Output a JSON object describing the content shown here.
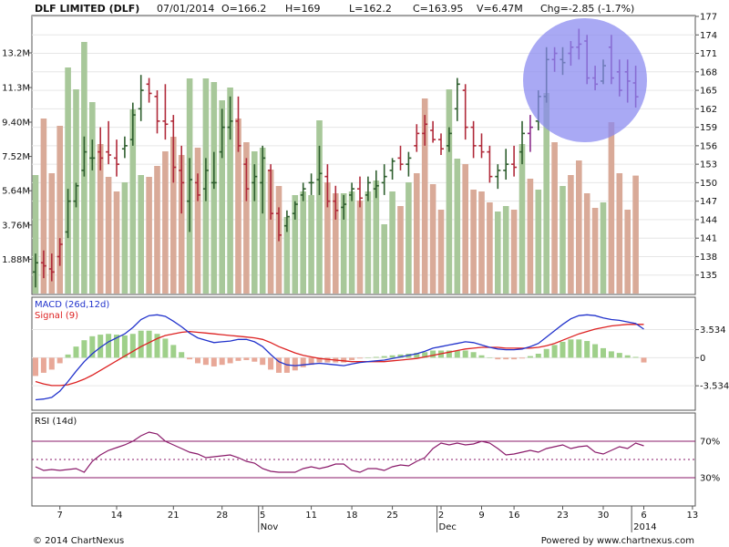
{
  "header": {
    "name": "DLF LIMITED (DLF)",
    "date": "07/01/2014",
    "open": "O=166.2",
    "high": "H=169",
    "low": "L=162.2",
    "close": "C=163.95",
    "volume": "V=6.47M",
    "change": "Chg=-2.85 (-1.7%)"
  },
  "footer": {
    "copyright": "© 2014 ChartNexus",
    "powered": "Powered by www.chartnexus.com"
  },
  "colors": {
    "up": "#2f5f2f",
    "down": "#b02a3a",
    "down_late": "#8a2a8a",
    "vol_up": "#a8c89a",
    "vol_down": "#d9aa98",
    "macd_line": "#2233cc",
    "signal_line": "#dd2222",
    "hist_up": "#9fd08a",
    "hist_down": "#e8a898",
    "rsi_line": "#8a1a6a",
    "highlight_circle": "#8888f0"
  },
  "chart_data": [
    {
      "type": "ohlc",
      "name": "price",
      "y_axis_labels": [
        "177",
        "174",
        "171",
        "168",
        "165",
        "162",
        "159",
        "156",
        "153",
        "150",
        "147",
        "144",
        "141",
        "138",
        "135"
      ],
      "ylim": [
        132,
        177
      ],
      "volume_axis_labels": [
        "13.2M",
        "11.3M",
        "9.40M",
        "7.52M",
        "5.64M",
        "3.76M",
        "1.88M"
      ],
      "volume_ylim": [
        0,
        15.2
      ],
      "x_tick_labels": [
        "7",
        "14",
        "21",
        "28",
        "5",
        "11",
        "18",
        "25",
        "2",
        "9",
        "16",
        "23",
        "30",
        "6",
        "13"
      ],
      "month_labels": [
        "Nov",
        "Dec",
        "2014"
      ],
      "bars": [
        {
          "o": 135.5,
          "h": 138.5,
          "l": 133.0,
          "c": 137.0,
          "v": 6.5,
          "up": true
        },
        {
          "o": 137.0,
          "h": 139.0,
          "l": 134.5,
          "c": 136.5,
          "v": 9.6,
          "up": false
        },
        {
          "o": 136.0,
          "h": 138.5,
          "l": 134.0,
          "c": 135.5,
          "v": 6.6,
          "up": false
        },
        {
          "o": 138.0,
          "h": 141.0,
          "l": 136.5,
          "c": 140.0,
          "v": 9.2,
          "up": false
        },
        {
          "o": 142.0,
          "h": 149.0,
          "l": 141.0,
          "c": 147.0,
          "v": 12.4,
          "up": true
        },
        {
          "o": 147.0,
          "h": 150.0,
          "l": 146.0,
          "c": 149.5,
          "v": 11.2,
          "up": true
        },
        {
          "o": 152.0,
          "h": 157.5,
          "l": 151.0,
          "c": 155.0,
          "v": 13.8,
          "up": true
        },
        {
          "o": 154.0,
          "h": 157.0,
          "l": 152.0,
          "c": 154.0,
          "v": 10.5,
          "up": true
        },
        {
          "o": 155.0,
          "h": 159.0,
          "l": 152.0,
          "c": 154.0,
          "v": 8.2,
          "up": false
        },
        {
          "o": 155.0,
          "h": 160.0,
          "l": 153.0,
          "c": 154.5,
          "v": 6.4,
          "up": false
        },
        {
          "o": 154.0,
          "h": 157.0,
          "l": 151.0,
          "c": 153.0,
          "v": 5.6,
          "up": false
        },
        {
          "o": 155.5,
          "h": 157.5,
          "l": 154.0,
          "c": 156.0,
          "v": 6.1,
          "up": true
        },
        {
          "o": 157.0,
          "h": 163.0,
          "l": 156.0,
          "c": 161.0,
          "v": 10.1,
          "up": true
        },
        {
          "o": 162.0,
          "h": 167.5,
          "l": 160.0,
          "c": 165.0,
          "v": 6.5,
          "up": true
        },
        {
          "o": 166.0,
          "h": 167.0,
          "l": 163.0,
          "c": 164.5,
          "v": 6.4,
          "up": false
        },
        {
          "o": 164.0,
          "h": 165.0,
          "l": 158.0,
          "c": 160.0,
          "v": 7.0,
          "up": false
        },
        {
          "o": 160.0,
          "h": 166.0,
          "l": 157.0,
          "c": 159.5,
          "v": 7.8,
          "up": false
        },
        {
          "o": 160.0,
          "h": 161.0,
          "l": 150.0,
          "c": 152.5,
          "v": 8.6,
          "up": false
        },
        {
          "o": 152.0,
          "h": 156.0,
          "l": 145.0,
          "c": 150.0,
          "v": 7.6,
          "up": false
        },
        {
          "o": 147.0,
          "h": 154.0,
          "l": 142.0,
          "c": 150.5,
          "v": 11.8,
          "up": true
        },
        {
          "o": 150.0,
          "h": 151.5,
          "l": 147.0,
          "c": 148.0,
          "v": 8.0,
          "up": false
        },
        {
          "o": 149.0,
          "h": 154.0,
          "l": 147.0,
          "c": 152.0,
          "v": 11.8,
          "up": true
        },
        {
          "o": 150.0,
          "h": 155.0,
          "l": 149.0,
          "c": 150.0,
          "v": 11.6,
          "up": true
        },
        {
          "o": 155.0,
          "h": 162.0,
          "l": 154.0,
          "c": 159.0,
          "v": 10.6,
          "up": true
        },
        {
          "o": 159.0,
          "h": 164.0,
          "l": 157.0,
          "c": 160.0,
          "v": 11.3,
          "up": true
        },
        {
          "o": 160.0,
          "h": 164.0,
          "l": 155.0,
          "c": 156.0,
          "v": 9.6,
          "up": false
        },
        {
          "o": 153.0,
          "h": 154.0,
          "l": 147.0,
          "c": 149.0,
          "v": 8.3,
          "up": false
        },
        {
          "o": 150.0,
          "h": 153.0,
          "l": 147.0,
          "c": 151.0,
          "v": 7.8,
          "up": true
        },
        {
          "o": 150.0,
          "h": 156.0,
          "l": 145.0,
          "c": 154.0,
          "v": 8.0,
          "up": true
        },
        {
          "o": 152.0,
          "h": 153.0,
          "l": 144.0,
          "c": 145.0,
          "v": 6.8,
          "up": false
        },
        {
          "o": 145.0,
          "h": 146.0,
          "l": 140.5,
          "c": 141.5,
          "v": 5.9,
          "up": false
        },
        {
          "o": 143.0,
          "h": 145.5,
          "l": 142.0,
          "c": 144.5,
          "v": 4.2,
          "up": true
        },
        {
          "o": 145.0,
          "h": 147.0,
          "l": 144.0,
          "c": 146.5,
          "v": 5.4,
          "up": true
        },
        {
          "o": 148.0,
          "h": 150.0,
          "l": 147.0,
          "c": 149.0,
          "v": 5.6,
          "up": true
        },
        {
          "o": 150.0,
          "h": 151.5,
          "l": 148.0,
          "c": 150.0,
          "v": 5.4,
          "up": true
        },
        {
          "o": 150.5,
          "h": 156.0,
          "l": 148.0,
          "c": 151.5,
          "v": 9.5,
          "up": true
        },
        {
          "o": 151.0,
          "h": 153.0,
          "l": 146.0,
          "c": 147.0,
          "v": 6.1,
          "up": false
        },
        {
          "o": 147.0,
          "h": 149.5,
          "l": 144.0,
          "c": 145.5,
          "v": 5.5,
          "up": false
        },
        {
          "o": 146.0,
          "h": 148.0,
          "l": 144.0,
          "c": 146.5,
          "v": 5.5,
          "up": true
        },
        {
          "o": 148.0,
          "h": 150.0,
          "l": 147.0,
          "c": 149.0,
          "v": 5.6,
          "up": true
        },
        {
          "o": 149.0,
          "h": 151.0,
          "l": 146.0,
          "c": 147.5,
          "v": 5.1,
          "up": false
        },
        {
          "o": 148.0,
          "h": 151.0,
          "l": 147.0,
          "c": 150.0,
          "v": 5.6,
          "up": true
        },
        {
          "o": 149.0,
          "h": 152.0,
          "l": 147.5,
          "c": 149.5,
          "v": 6.2,
          "up": true
        },
        {
          "o": 150.0,
          "h": 153.0,
          "l": 148.0,
          "c": 151.0,
          "v": 3.8,
          "up": true
        },
        {
          "o": 152.0,
          "h": 154.0,
          "l": 150.5,
          "c": 153.5,
          "v": 5.6,
          "up": true
        },
        {
          "o": 154.0,
          "h": 156.0,
          "l": 152.0,
          "c": 153.0,
          "v": 4.8,
          "up": false
        },
        {
          "o": 153.0,
          "h": 155.0,
          "l": 151.0,
          "c": 154.0,
          "v": 6.1,
          "up": true
        },
        {
          "o": 156.0,
          "h": 159.5,
          "l": 155.0,
          "c": 158.0,
          "v": 6.6,
          "up": false
        },
        {
          "o": 158.0,
          "h": 161.0,
          "l": 156.0,
          "c": 159.5,
          "v": 10.7,
          "up": false
        },
        {
          "o": 158.5,
          "h": 160.0,
          "l": 156.5,
          "c": 157.0,
          "v": 6.0,
          "up": false
        },
        {
          "o": 157.0,
          "h": 158.0,
          "l": 154.5,
          "c": 155.5,
          "v": 4.6,
          "up": false
        },
        {
          "o": 156.0,
          "h": 159.0,
          "l": 155.0,
          "c": 158.0,
          "v": 11.2,
          "up": true
        },
        {
          "o": 162.0,
          "h": 167.0,
          "l": 160.0,
          "c": 166.0,
          "v": 7.4,
          "up": true
        },
        {
          "o": 165.0,
          "h": 166.0,
          "l": 157.0,
          "c": 159.0,
          "v": 7.1,
          "up": false
        },
        {
          "o": 159.0,
          "h": 160.0,
          "l": 154.0,
          "c": 156.0,
          "v": 5.7,
          "up": false
        },
        {
          "o": 156.0,
          "h": 158.0,
          "l": 154.0,
          "c": 155.0,
          "v": 5.6,
          "up": false
        },
        {
          "o": 155.0,
          "h": 156.0,
          "l": 150.0,
          "c": 151.0,
          "v": 5.0,
          "up": false
        },
        {
          "o": 151.0,
          "h": 153.0,
          "l": 149.0,
          "c": 152.0,
          "v": 4.5,
          "up": true
        },
        {
          "o": 152.0,
          "h": 155.5,
          "l": 150.5,
          "c": 153.0,
          "v": 4.8,
          "up": true
        },
        {
          "o": 153.0,
          "h": 156.0,
          "l": 151.0,
          "c": 152.5,
          "v": 4.6,
          "up": false
        },
        {
          "o": 155.0,
          "h": 160.0,
          "l": 153.0,
          "c": 158.0,
          "v": 8.2,
          "up": true
        },
        {
          "o": 158.0,
          "h": 161.0,
          "l": 155.0,
          "c": 159.0,
          "v": 6.3,
          "up": false
        },
        {
          "o": 160.0,
          "h": 165.0,
          "l": 158.5,
          "c": 164.0,
          "v": 5.7,
          "up": true
        },
        {
          "o": 164.0,
          "h": 172.0,
          "l": 163.0,
          "c": 170.0,
          "v": 11.0,
          "up": true
        },
        {
          "o": 170.0,
          "h": 172.0,
          "l": 168.0,
          "c": 171.0,
          "v": 8.3,
          "up": false
        },
        {
          "o": 170.0,
          "h": 172.0,
          "l": 167.5,
          "c": 169.5,
          "v": 5.9,
          "up": true
        },
        {
          "o": 171.0,
          "h": 173.0,
          "l": 169.0,
          "c": 172.0,
          "v": 6.5,
          "up": false
        },
        {
          "o": 172.0,
          "h": 175.0,
          "l": 170.0,
          "c": 172.5,
          "v": 7.3,
          "up": false
        },
        {
          "o": 173.0,
          "h": 174.0,
          "l": 166.0,
          "c": 167.0,
          "v": 5.5,
          "up": false
        },
        {
          "o": 167.0,
          "h": 169.0,
          "l": 165.0,
          "c": 166.0,
          "v": 4.7,
          "up": false
        },
        {
          "o": 166.5,
          "h": 170.0,
          "l": 166.0,
          "c": 169.0,
          "v": 5.0,
          "up": true
        },
        {
          "o": 172.0,
          "h": 174.0,
          "l": 166.0,
          "c": 167.0,
          "v": 9.4,
          "up": false
        },
        {
          "o": 168.0,
          "h": 170.0,
          "l": 164.0,
          "c": 165.0,
          "v": 6.6,
          "up": false
        },
        {
          "o": 168.0,
          "h": 170.0,
          "l": 163.0,
          "c": 166.5,
          "v": 4.6,
          "up": false
        },
        {
          "o": 166.2,
          "h": 169.0,
          "l": 162.2,
          "c": 163.95,
          "v": 6.47,
          "up": false
        }
      ]
    },
    {
      "type": "macd",
      "title": "MACD (26d,12d)",
      "signal_title": "Signal (9)",
      "y_axis_labels": [
        "3.534",
        "0",
        "-3.534"
      ],
      "y_axis_values": [
        3.534,
        0,
        -3.534
      ],
      "ylim": [
        -6.5,
        7.5
      ],
      "macd": [
        -5.3,
        -5.2,
        -5.0,
        -4.2,
        -3.0,
        -1.7,
        -0.5,
        0.5,
        1.3,
        2.0,
        2.5,
        3.0,
        3.8,
        4.8,
        5.3,
        5.4,
        5.2,
        4.6,
        3.9,
        3.1,
        2.5,
        2.2,
        1.9,
        2.0,
        2.1,
        2.3,
        2.3,
        2.0,
        1.4,
        0.4,
        -0.5,
        -0.9,
        -1.0,
        -0.9,
        -0.8,
        -0.7,
        -0.8,
        -0.9,
        -1.0,
        -0.8,
        -0.6,
        -0.5,
        -0.4,
        -0.3,
        -0.1,
        0.1,
        0.3,
        0.5,
        0.8,
        1.2,
        1.4,
        1.6,
        1.8,
        2.0,
        1.9,
        1.6,
        1.3,
        1.1,
        1.0,
        1.0,
        1.1,
        1.4,
        1.8,
        2.6,
        3.4,
        4.2,
        4.9,
        5.3,
        5.4,
        5.3,
        5.0,
        4.8,
        4.7,
        4.5,
        4.3,
        3.6
      ],
      "signal": [
        -3.0,
        -3.3,
        -3.5,
        -3.5,
        -3.4,
        -3.1,
        -2.7,
        -2.2,
        -1.6,
        -1.0,
        -0.4,
        0.2,
        0.8,
        1.4,
        1.9,
        2.4,
        2.8,
        3.0,
        3.2,
        3.3,
        3.2,
        3.1,
        3.0,
        2.9,
        2.8,
        2.7,
        2.6,
        2.5,
        2.3,
        1.9,
        1.4,
        1.0,
        0.6,
        0.3,
        0.1,
        -0.1,
        -0.2,
        -0.3,
        -0.4,
        -0.5,
        -0.5,
        -0.5,
        -0.5,
        -0.5,
        -0.4,
        -0.3,
        -0.2,
        -0.1,
        0.1,
        0.3,
        0.5,
        0.7,
        0.9,
        1.1,
        1.2,
        1.3,
        1.3,
        1.3,
        1.2,
        1.2,
        1.2,
        1.2,
        1.3,
        1.5,
        1.8,
        2.2,
        2.6,
        3.0,
        3.3,
        3.6,
        3.8,
        4.0,
        4.1,
        4.2,
        4.2,
        4.2
      ]
    },
    {
      "type": "line",
      "title": "RSI (14d)",
      "y_axis_labels": [
        "70%",
        "30%"
      ],
      "y_axis_values": [
        70,
        30
      ],
      "ylim": [
        0,
        100
      ],
      "midline": 50,
      "rsi": [
        42,
        38,
        39,
        38,
        39,
        40,
        36,
        48,
        55,
        60,
        63,
        66,
        70,
        76,
        80,
        78,
        70,
        66,
        62,
        58,
        56,
        52,
        53,
        54,
        55,
        52,
        48,
        46,
        40,
        37,
        36,
        36,
        36,
        40,
        42,
        40,
        42,
        45,
        45,
        38,
        36,
        40,
        40,
        38,
        42,
        44,
        43,
        48,
        52,
        62,
        68,
        66,
        68,
        66,
        67,
        70,
        68,
        62,
        55,
        56,
        58,
        60,
        58,
        62,
        64,
        66,
        62,
        64,
        65,
        58,
        56,
        60,
        64,
        62,
        68,
        65
      ]
    }
  ]
}
